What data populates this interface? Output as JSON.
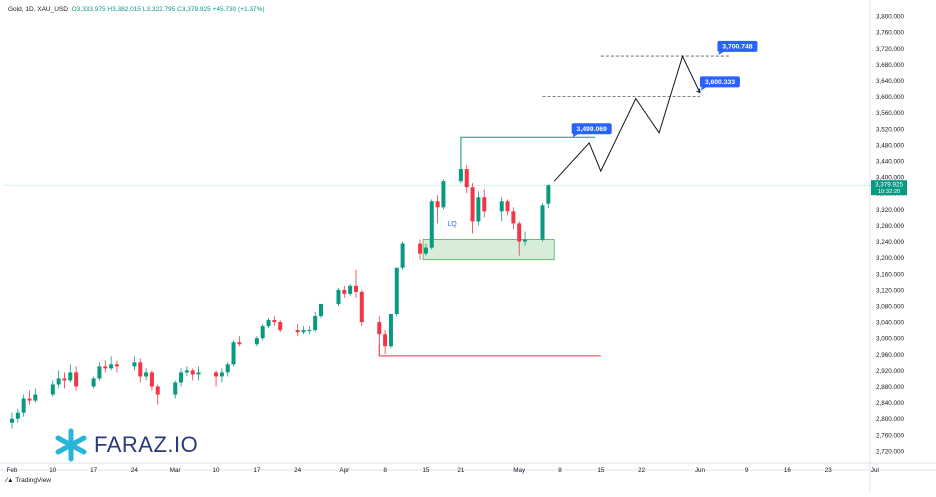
{
  "header": {
    "symbol": "Gold, 1D, XAU_USD",
    "ohlc": "O3,333.975  H3,382.015  L3,322.795  C3,379.925  +45.730 (+1.37%)"
  },
  "brand": {
    "name": "FARAZ.IO",
    "logo_icon": "asterisk-logo-icon",
    "logo_color": "#27b5d9"
  },
  "footer": {
    "tradingview_label": "TradingView"
  },
  "colors": {
    "up": "#089981",
    "down": "#f23645",
    "accent": "#2962ff",
    "zone": "#4caf50"
  },
  "chart_data": {
    "type": "candlestick",
    "title": "",
    "ylim": [
      2690,
      3830
    ],
    "y_ticks": [
      2720,
      2760,
      2800,
      2840,
      2880,
      2920,
      2960,
      3000,
      3040,
      3080,
      3120,
      3160,
      3200,
      3240,
      3280,
      3320,
      3360,
      3400,
      3440,
      3480,
      3520,
      3560,
      3600,
      3640,
      3680,
      3720,
      3760,
      3800
    ],
    "x_ticks": [
      {
        "label": "Feb",
        "date": "2025-02-03"
      },
      {
        "label": "10",
        "date": "2025-02-10"
      },
      {
        "label": "17",
        "date": "2025-02-17"
      },
      {
        "label": "24",
        "date": "2025-02-24"
      },
      {
        "label": "Mar",
        "date": "2025-03-03"
      },
      {
        "label": "10",
        "date": "2025-03-10"
      },
      {
        "label": "17",
        "date": "2025-03-17"
      },
      {
        "label": "24",
        "date": "2025-03-24"
      },
      {
        "label": "Apr",
        "date": "2025-04-01"
      },
      {
        "label": "8",
        "date": "2025-04-08"
      },
      {
        "label": "15",
        "date": "2025-04-15"
      },
      {
        "label": "21",
        "date": "2025-04-21"
      },
      {
        "label": "May",
        "date": "2025-05-01"
      },
      {
        "label": "8",
        "date": "2025-05-08"
      },
      {
        "label": "15",
        "date": "2025-05-15"
      },
      {
        "label": "22",
        "date": "2025-05-22"
      },
      {
        "label": "Jun",
        "date": "2025-06-01"
      },
      {
        "label": "9",
        "date": "2025-06-09"
      },
      {
        "label": "16",
        "date": "2025-06-16"
      },
      {
        "label": "23",
        "date": "2025-06-23"
      },
      {
        "label": "Jul",
        "date": "2025-07-01"
      }
    ],
    "candles": [
      {
        "d": "2025-02-03",
        "o": 2790,
        "h": 2815,
        "l": 2775,
        "c": 2800
      },
      {
        "d": "2025-02-04",
        "o": 2800,
        "h": 2825,
        "l": 2790,
        "c": 2815
      },
      {
        "d": "2025-02-05",
        "o": 2815,
        "h": 2860,
        "l": 2805,
        "c": 2850
      },
      {
        "d": "2025-02-06",
        "o": 2850,
        "h": 2870,
        "l": 2835,
        "c": 2845
      },
      {
        "d": "2025-02-07",
        "o": 2845,
        "h": 2875,
        "l": 2840,
        "c": 2860
      },
      {
        "d": "2025-02-10",
        "o": 2860,
        "h": 2895,
        "l": 2855,
        "c": 2885
      },
      {
        "d": "2025-02-11",
        "o": 2885,
        "h": 2920,
        "l": 2875,
        "c": 2900
      },
      {
        "d": "2025-02-12",
        "o": 2900,
        "h": 2915,
        "l": 2875,
        "c": 2895
      },
      {
        "d": "2025-02-13",
        "o": 2895,
        "h": 2935,
        "l": 2890,
        "c": 2915
      },
      {
        "d": "2025-02-14",
        "o": 2915,
        "h": 2930,
        "l": 2870,
        "c": 2880
      },
      {
        "d": "2025-02-17",
        "o": 2880,
        "h": 2905,
        "l": 2875,
        "c": 2900
      },
      {
        "d": "2025-02-18",
        "o": 2900,
        "h": 2940,
        "l": 2895,
        "c": 2930
      },
      {
        "d": "2025-02-19",
        "o": 2930,
        "h": 2945,
        "l": 2915,
        "c": 2925
      },
      {
        "d": "2025-02-20",
        "o": 2925,
        "h": 2955,
        "l": 2920,
        "c": 2935
      },
      {
        "d": "2025-02-21",
        "o": 2935,
        "h": 2945,
        "l": 2915,
        "c": 2930
      },
      {
        "d": "2025-02-24",
        "o": 2930,
        "h": 2955,
        "l": 2920,
        "c": 2940
      },
      {
        "d": "2025-02-25",
        "o": 2940,
        "h": 2950,
        "l": 2890,
        "c": 2905
      },
      {
        "d": "2025-02-26",
        "o": 2905,
        "h": 2925,
        "l": 2895,
        "c": 2915
      },
      {
        "d": "2025-02-27",
        "o": 2915,
        "h": 2920,
        "l": 2870,
        "c": 2880
      },
      {
        "d": "2025-02-28",
        "o": 2880,
        "h": 2885,
        "l": 2835,
        "c": 2860
      },
      {
        "d": "2025-03-03",
        "o": 2860,
        "h": 2895,
        "l": 2850,
        "c": 2890
      },
      {
        "d": "2025-03-04",
        "o": 2890,
        "h": 2925,
        "l": 2880,
        "c": 2915
      },
      {
        "d": "2025-03-05",
        "o": 2915,
        "h": 2930,
        "l": 2905,
        "c": 2920
      },
      {
        "d": "2025-03-06",
        "o": 2920,
        "h": 2925,
        "l": 2895,
        "c": 2910
      },
      {
        "d": "2025-03-07",
        "o": 2910,
        "h": 2930,
        "l": 2895,
        "c": 2915
      },
      {
        "d": "2025-03-10",
        "o": 2915,
        "h": 2920,
        "l": 2880,
        "c": 2905
      },
      {
        "d": "2025-03-11",
        "o": 2905,
        "h": 2925,
        "l": 2890,
        "c": 2915
      },
      {
        "d": "2025-03-12",
        "o": 2915,
        "h": 2940,
        "l": 2905,
        "c": 2935
      },
      {
        "d": "2025-03-13",
        "o": 2935,
        "h": 2995,
        "l": 2930,
        "c": 2990
      },
      {
        "d": "2025-03-14",
        "o": 2990,
        "h": 3005,
        "l": 2980,
        "c": 2985
      },
      {
        "d": "2025-03-17",
        "o": 2985,
        "h": 3005,
        "l": 2980,
        "c": 3000
      },
      {
        "d": "2025-03-18",
        "o": 3000,
        "h": 3035,
        "l": 2995,
        "c": 3030
      },
      {
        "d": "2025-03-19",
        "o": 3030,
        "h": 3050,
        "l": 3025,
        "c": 3045
      },
      {
        "d": "2025-03-20",
        "o": 3045,
        "h": 3055,
        "l": 3030,
        "c": 3040
      },
      {
        "d": "2025-03-21",
        "o": 3040,
        "h": 3045,
        "l": 3015,
        "c": 3020
      },
      {
        "d": "2025-03-24",
        "o": 3020,
        "h": 3035,
        "l": 3005,
        "c": 3015
      },
      {
        "d": "2025-03-25",
        "o": 3015,
        "h": 3030,
        "l": 3010,
        "c": 3020
      },
      {
        "d": "2025-03-26",
        "o": 3020,
        "h": 3030,
        "l": 3010,
        "c": 3020
      },
      {
        "d": "2025-03-27",
        "o": 3020,
        "h": 3065,
        "l": 3015,
        "c": 3055
      },
      {
        "d": "2025-03-28",
        "o": 3055,
        "h": 3085,
        "l": 3050,
        "c": 3085
      },
      {
        "d": "2025-03-31",
        "o": 3085,
        "h": 3125,
        "l": 3080,
        "c": 3120
      },
      {
        "d": "2025-04-01",
        "o": 3120,
        "h": 3130,
        "l": 3100,
        "c": 3110
      },
      {
        "d": "2025-04-02",
        "o": 3110,
        "h": 3135,
        "l": 3105,
        "c": 3130
      },
      {
        "d": "2025-04-03",
        "o": 3130,
        "h": 3170,
        "l": 3100,
        "c": 3115
      },
      {
        "d": "2025-04-04",
        "o": 3115,
        "h": 3120,
        "l": 3030,
        "c": 3040
      },
      {
        "d": "2025-04-07",
        "o": 3040,
        "h": 3055,
        "l": 2955,
        "c": 3010
      },
      {
        "d": "2025-04-08",
        "o": 3010,
        "h": 3020,
        "l": 2960,
        "c": 2980
      },
      {
        "d": "2025-04-09",
        "o": 2980,
        "h": 3060,
        "l": 2975,
        "c": 3060
      },
      {
        "d": "2025-04-10",
        "o": 3060,
        "h": 3175,
        "l": 3055,
        "c": 3175
      },
      {
        "d": "2025-04-11",
        "o": 3175,
        "h": 3240,
        "l": 3170,
        "c": 3235
      },
      {
        "d": "2025-04-14",
        "o": 3235,
        "h": 3245,
        "l": 3195,
        "c": 3210
      },
      {
        "d": "2025-04-15",
        "o": 3210,
        "h": 3235,
        "l": 3205,
        "c": 3225
      },
      {
        "d": "2025-04-16",
        "o": 3225,
        "h": 3345,
        "l": 3220,
        "c": 3340
      },
      {
        "d": "2025-04-17",
        "o": 3340,
        "h": 3355,
        "l": 3285,
        "c": 3325
      },
      {
        "d": "2025-04-18",
        "o": 3325,
        "h": 3395,
        "l": 3320,
        "c": 3390
      },
      {
        "d": "2025-04-21",
        "o": 3390,
        "h": 3500,
        "l": 3385,
        "c": 3420
      },
      {
        "d": "2025-04-22",
        "o": 3420,
        "h": 3430,
        "l": 3360,
        "c": 3375
      },
      {
        "d": "2025-04-23",
        "o": 3375,
        "h": 3385,
        "l": 3260,
        "c": 3290
      },
      {
        "d": "2025-04-24",
        "o": 3290,
        "h": 3365,
        "l": 3280,
        "c": 3350
      },
      {
        "d": "2025-04-25",
        "o": 3350,
        "h": 3370,
        "l": 3300,
        "c": 3315
      },
      {
        "d": "2025-04-28",
        "o": 3315,
        "h": 3350,
        "l": 3290,
        "c": 3340
      },
      {
        "d": "2025-04-29",
        "o": 3340,
        "h": 3345,
        "l": 3305,
        "c": 3315
      },
      {
        "d": "2025-04-30",
        "o": 3315,
        "h": 3325,
        "l": 3270,
        "c": 3285
      },
      {
        "d": "2025-05-01",
        "o": 3285,
        "h": 3290,
        "l": 3205,
        "c": 3240
      },
      {
        "d": "2025-05-02",
        "o": 3240,
        "h": 3265,
        "l": 3230,
        "c": 3245
      },
      {
        "d": "2025-05-05",
        "o": 3245,
        "h": 3335,
        "l": 3240,
        "c": 3330
      },
      {
        "d": "2025-05-06",
        "o": 3334,
        "h": 3382,
        "l": 3323,
        "c": 3380
      }
    ],
    "last_price": {
      "value": "3,379.925",
      "countdown": "10:32:20"
    },
    "levels": [
      {
        "name": "target-2",
        "value": 3700.748,
        "label": "3,700.748",
        "style": "dashed"
      },
      {
        "name": "target-1",
        "value": 3600.333,
        "label": "3,600.333",
        "style": "dashed"
      },
      {
        "name": "resistance",
        "value": 3499.069,
        "label": "3,499.069",
        "style": "solid"
      },
      {
        "name": "support",
        "value": 2956,
        "label": "",
        "style": "solid"
      }
    ],
    "demand_zone": {
      "from_date": "2025-04-14",
      "to_date": "2025-05-07",
      "low": 3195,
      "high": 3245
    },
    "annotations": [
      {
        "text": "LQ",
        "date": "2025-04-18",
        "value": 3284
      }
    ],
    "projection": [
      {
        "d": "2025-05-07",
        "v": 3390
      },
      {
        "d": "2025-05-13",
        "v": 3485
      },
      {
        "d": "2025-05-15",
        "v": 3415
      },
      {
        "d": "2025-05-21",
        "v": 3595
      },
      {
        "d": "2025-05-25",
        "v": 3510
      },
      {
        "d": "2025-05-29",
        "v": 3700
      },
      {
        "d": "2025-06-01",
        "v": 3610
      }
    ]
  }
}
